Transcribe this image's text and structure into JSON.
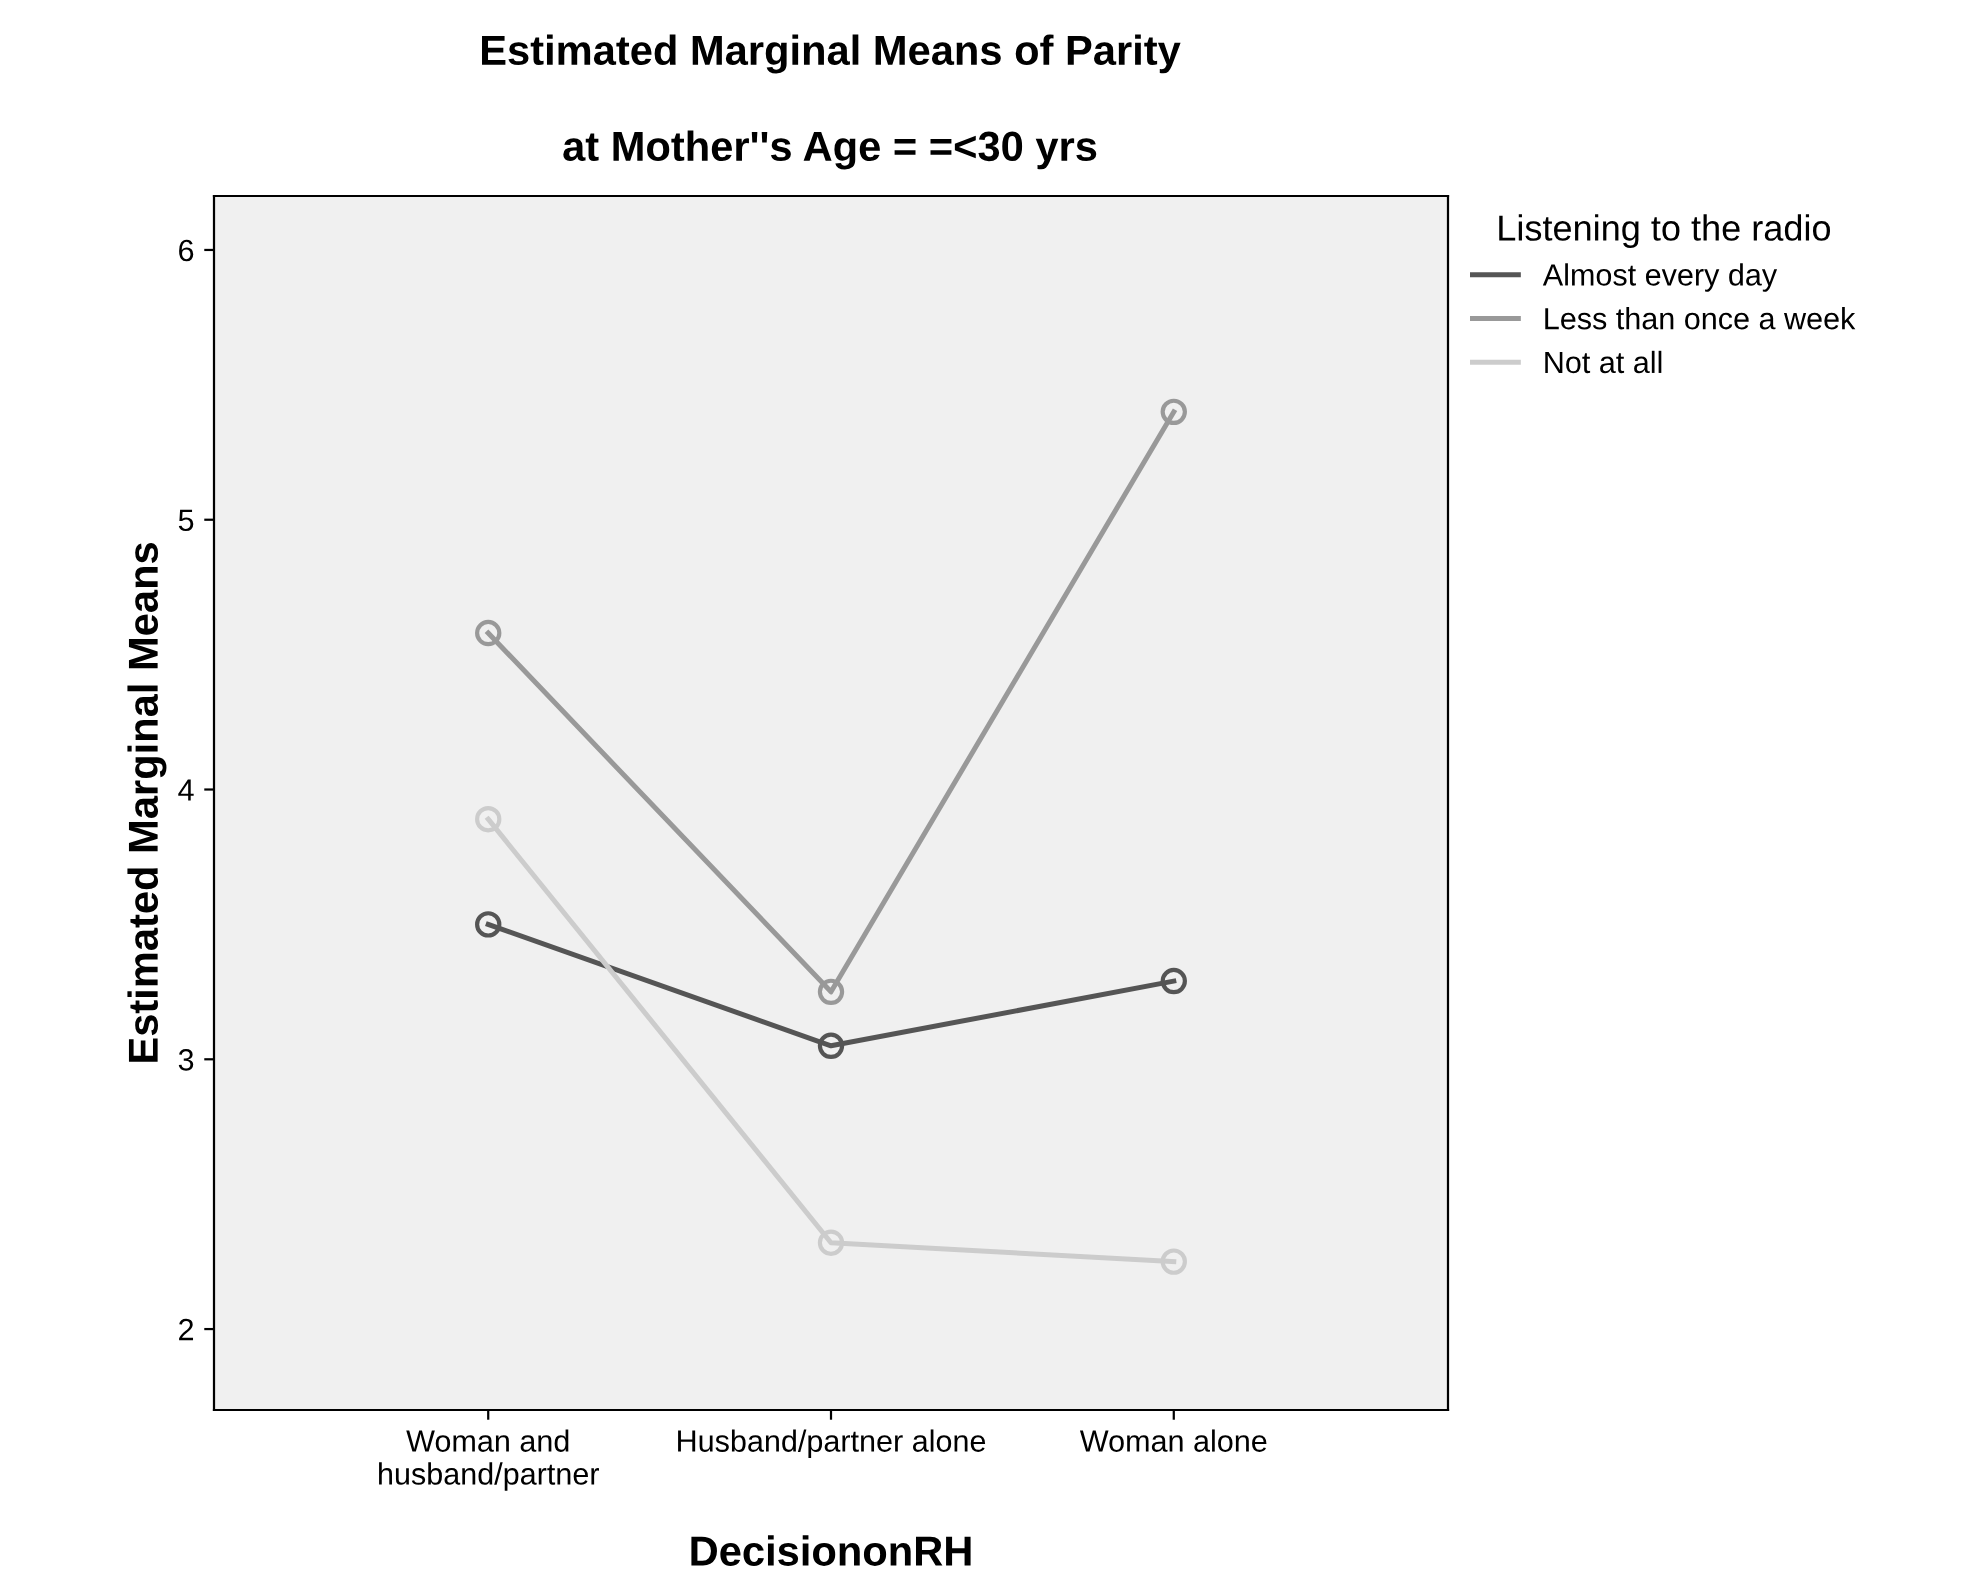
{
  "chart_data": {
    "type": "line",
    "title": "Estimated Marginal Means of Parity",
    "subtitle": "at Mother''s Age = =<30 yrs",
    "xlabel": "DecisiononRH",
    "ylabel": "Estimated Marginal Means",
    "legend_title": "Listening to the radio",
    "categories": [
      "Woman and\nhusband/partner",
      "Husband/partner alone",
      "Woman alone"
    ],
    "series": [
      {
        "name": "Almost every day",
        "color": "#555555",
        "values": [
          3.5,
          3.05,
          3.29
        ]
      },
      {
        "name": "Less than once a week",
        "color": "#999999",
        "values": [
          4.58,
          3.25,
          5.4
        ]
      },
      {
        "name": "Not at all",
        "color": "#cccccc",
        "values": [
          3.89,
          2.32,
          2.25
        ]
      }
    ],
    "ylim": [
      1.7,
      6.2
    ],
    "yticks": [
      2,
      3,
      4,
      5,
      6
    ],
    "grid": false,
    "legend": "right",
    "marker": "circle",
    "line_style": "solid"
  }
}
